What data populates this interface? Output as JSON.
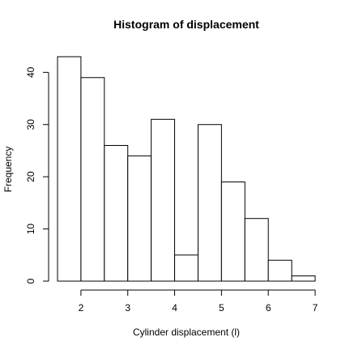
{
  "chart_data": {
    "type": "bar",
    "title": "Histogram of displacement",
    "xlabel": "Cylinder displacement (l)",
    "ylabel": "Frequency",
    "bins": [
      {
        "x0": 1.5,
        "x1": 2.0,
        "count": 43
      },
      {
        "x0": 2.0,
        "x1": 2.5,
        "count": 39
      },
      {
        "x0": 2.5,
        "x1": 3.0,
        "count": 26
      },
      {
        "x0": 3.0,
        "x1": 3.5,
        "count": 24
      },
      {
        "x0": 3.5,
        "x1": 4.0,
        "count": 31
      },
      {
        "x0": 4.0,
        "x1": 4.5,
        "count": 5
      },
      {
        "x0": 4.5,
        "x1": 5.0,
        "count": 30
      },
      {
        "x0": 5.0,
        "x1": 5.5,
        "count": 19
      },
      {
        "x0": 5.5,
        "x1": 6.0,
        "count": 12
      },
      {
        "x0": 6.0,
        "x1": 6.5,
        "count": 4
      },
      {
        "x0": 6.5,
        "x1": 7.0,
        "count": 1
      }
    ],
    "xlim": [
      1.5,
      7.0
    ],
    "ylim": [
      0,
      43
    ],
    "x_ticks": [
      2,
      3,
      4,
      5,
      6,
      7
    ],
    "y_ticks": [
      0,
      10,
      20,
      30,
      40
    ],
    "grid": false
  }
}
